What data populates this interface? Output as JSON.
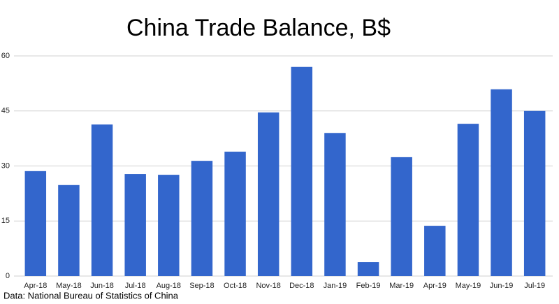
{
  "chart_data": {
    "type": "bar",
    "title": "China Trade Balance, B$",
    "source": "Data: National Bureau of Statistics of China",
    "categories": [
      "Apr-18",
      "May-18",
      "Jun-18",
      "Jul-18",
      "Aug-18",
      "Sep-18",
      "Oct-18",
      "Nov-18",
      "Dec-18",
      "Jan-19",
      "Feb-19",
      "Mar-19",
      "Apr-19",
      "May-19",
      "Jun-19",
      "Jul-19"
    ],
    "values": [
      28.6,
      24.8,
      41.3,
      27.8,
      27.6,
      31.4,
      33.9,
      44.6,
      57.0,
      39.0,
      3.8,
      32.4,
      13.7,
      41.5,
      50.9,
      45.0
    ],
    "color": "#3366cc",
    "ylim": [
      0,
      60
    ],
    "yticks": [
      0,
      15,
      30,
      45,
      60
    ],
    "grid": true
  }
}
